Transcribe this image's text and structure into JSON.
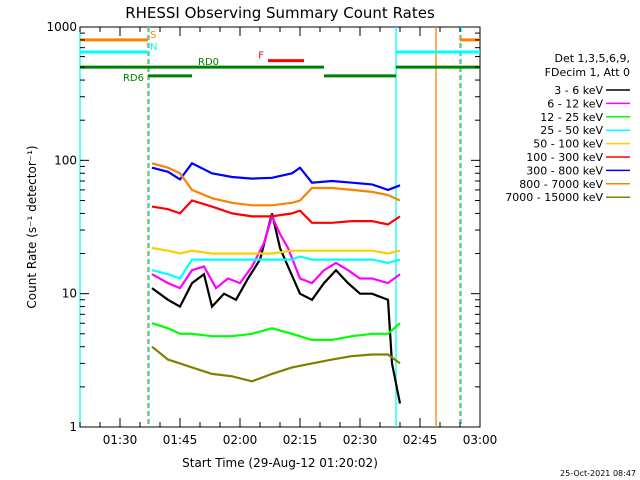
{
  "chart_data": {
    "type": "line",
    "title": "RHESSI Observing Summary Count Rates",
    "xlabel": "Start Time (29-Aug-12 01:20:02)",
    "ylabel": "Count Rate (s⁻¹ detector⁻¹)",
    "yscale": "log",
    "ylim": [
      1,
      1000
    ],
    "xlim_minutes": [
      0,
      100
    ],
    "x_ticks": [
      {
        "m": 10,
        "label": "01:30"
      },
      {
        "m": 25,
        "label": "01:45"
      },
      {
        "m": 40,
        "label": "02:00"
      },
      {
        "m": 55,
        "label": "02:15"
      },
      {
        "m": 70,
        "label": "02:30"
      },
      {
        "m": 85,
        "label": "02:45"
      },
      {
        "m": 100,
        "label": "03:00"
      }
    ],
    "y_ticks": [
      {
        "v": 1,
        "label": "1"
      },
      {
        "v": 10,
        "label": "10"
      },
      {
        "v": 100,
        "label": "100"
      },
      {
        "v": 1000,
        "label": "1000"
      }
    ],
    "legend_title": [
      "Det 1,3,5,6,9,",
      "FDecim 1, Att 0"
    ],
    "legend_position": "right",
    "series": [
      {
        "name": "3 - 6 keV",
        "color": "#000000",
        "values": [
          [
            18,
            11
          ],
          [
            22,
            9
          ],
          [
            25,
            8
          ],
          [
            28,
            12
          ],
          [
            31,
            14
          ],
          [
            33,
            8
          ],
          [
            36,
            10
          ],
          [
            39,
            9
          ],
          [
            42,
            13
          ],
          [
            45,
            18
          ],
          [
            48,
            40
          ],
          [
            50,
            22
          ],
          [
            52,
            16
          ],
          [
            55,
            10
          ],
          [
            58,
            9
          ],
          [
            61,
            12
          ],
          [
            64,
            15
          ],
          [
            67,
            12
          ],
          [
            70,
            10
          ],
          [
            73,
            10
          ],
          [
            77,
            9
          ],
          [
            78,
            3
          ],
          [
            80,
            1.5
          ]
        ]
      },
      {
        "name": "6 - 12 keV",
        "color": "#ff00ff",
        "values": [
          [
            18,
            14
          ],
          [
            22,
            12
          ],
          [
            25,
            11
          ],
          [
            28,
            15
          ],
          [
            31,
            16
          ],
          [
            34,
            11
          ],
          [
            37,
            13
          ],
          [
            40,
            12
          ],
          [
            43,
            16
          ],
          [
            46,
            24
          ],
          [
            48,
            38
          ],
          [
            50,
            28
          ],
          [
            52,
            22
          ],
          [
            55,
            13
          ],
          [
            58,
            12
          ],
          [
            61,
            15
          ],
          [
            64,
            17
          ],
          [
            67,
            15
          ],
          [
            70,
            13
          ],
          [
            73,
            13
          ],
          [
            77,
            12
          ],
          [
            80,
            14
          ]
        ]
      },
      {
        "name": "12 - 25 keV",
        "color": "#00ff00",
        "values": [
          [
            18,
            6
          ],
          [
            22,
            5.5
          ],
          [
            25,
            5
          ],
          [
            28,
            5
          ],
          [
            33,
            4.8
          ],
          [
            38,
            4.8
          ],
          [
            43,
            5
          ],
          [
            48,
            5.5
          ],
          [
            53,
            5
          ],
          [
            58,
            4.5
          ],
          [
            63,
            4.5
          ],
          [
            68,
            4.8
          ],
          [
            73,
            5
          ],
          [
            77,
            5
          ],
          [
            80,
            6
          ]
        ]
      },
      {
        "name": "25 - 50 keV",
        "color": "#00ffff",
        "values": [
          [
            18,
            15
          ],
          [
            22,
            14
          ],
          [
            25,
            13
          ],
          [
            28,
            18
          ],
          [
            33,
            18
          ],
          [
            38,
            18
          ],
          [
            43,
            18
          ],
          [
            48,
            18
          ],
          [
            53,
            18
          ],
          [
            55,
            19
          ],
          [
            58,
            18
          ],
          [
            63,
            18
          ],
          [
            68,
            18
          ],
          [
            73,
            18
          ],
          [
            77,
            17
          ],
          [
            80,
            18
          ]
        ]
      },
      {
        "name": "50 - 100 keV",
        "color": "#ffcc00",
        "values": [
          [
            18,
            22
          ],
          [
            22,
            21
          ],
          [
            25,
            20
          ],
          [
            28,
            21
          ],
          [
            33,
            20
          ],
          [
            38,
            20
          ],
          [
            43,
            20
          ],
          [
            48,
            20
          ],
          [
            53,
            21
          ],
          [
            58,
            21
          ],
          [
            63,
            21
          ],
          [
            68,
            21
          ],
          [
            73,
            21
          ],
          [
            77,
            20
          ],
          [
            80,
            21
          ]
        ]
      },
      {
        "name": "100 - 300 keV",
        "color": "#ff0000",
        "values": [
          [
            18,
            45
          ],
          [
            22,
            43
          ],
          [
            25,
            40
          ],
          [
            28,
            50
          ],
          [
            33,
            45
          ],
          [
            38,
            40
          ],
          [
            43,
            38
          ],
          [
            48,
            38
          ],
          [
            53,
            40
          ],
          [
            55,
            42
          ],
          [
            58,
            34
          ],
          [
            63,
            34
          ],
          [
            68,
            35
          ],
          [
            73,
            35
          ],
          [
            77,
            33
          ],
          [
            80,
            38
          ]
        ]
      },
      {
        "name": "300 - 800 keV",
        "color": "#0000ff",
        "values": [
          [
            18,
            88
          ],
          [
            22,
            82
          ],
          [
            25,
            72
          ],
          [
            28,
            95
          ],
          [
            33,
            80
          ],
          [
            38,
            75
          ],
          [
            43,
            73
          ],
          [
            48,
            74
          ],
          [
            53,
            80
          ],
          [
            55,
            88
          ],
          [
            58,
            68
          ],
          [
            63,
            70
          ],
          [
            68,
            68
          ],
          [
            73,
            66
          ],
          [
            77,
            60
          ],
          [
            80,
            65
          ]
        ]
      },
      {
        "name": "800 - 7000 keV",
        "color": "#ff8000",
        "values": [
          [
            18,
            95
          ],
          [
            22,
            88
          ],
          [
            25,
            80
          ],
          [
            28,
            60
          ],
          [
            33,
            52
          ],
          [
            38,
            48
          ],
          [
            43,
            46
          ],
          [
            48,
            46
          ],
          [
            53,
            48
          ],
          [
            55,
            50
          ],
          [
            58,
            62
          ],
          [
            63,
            62
          ],
          [
            68,
            60
          ],
          [
            73,
            58
          ],
          [
            77,
            55
          ],
          [
            80,
            50
          ]
        ]
      },
      {
        "name": "7000 - 15000 keV",
        "color": "#808000",
        "values": [
          [
            18,
            4
          ],
          [
            22,
            3.2
          ],
          [
            25,
            3
          ],
          [
            28,
            2.8
          ],
          [
            33,
            2.5
          ],
          [
            38,
            2.4
          ],
          [
            43,
            2.2
          ],
          [
            48,
            2.5
          ],
          [
            53,
            2.8
          ],
          [
            58,
            3
          ],
          [
            63,
            3.2
          ],
          [
            68,
            3.4
          ],
          [
            73,
            3.5
          ],
          [
            77,
            3.5
          ],
          [
            80,
            3
          ]
        ]
      }
    ],
    "state_bars": [
      {
        "label": "S",
        "color": "#ff8000",
        "start": 0,
        "end": 17,
        "y": 800
      },
      {
        "label": "",
        "color": "#ff8000",
        "start": 95,
        "end": 100,
        "y": 800
      },
      {
        "label": "N",
        "color": "#00ffff",
        "start": 0,
        "end": 17,
        "y": 650
      },
      {
        "label": "",
        "color": "#00ffff",
        "start": 79,
        "end": 100,
        "y": 650
      },
      {
        "label": "RD0",
        "color": "#008000",
        "start": 0,
        "end": 29,
        "y": 500
      },
      {
        "label": "",
        "color": "#008000",
        "start": 29,
        "end": 61,
        "y": 500
      },
      {
        "label": "",
        "color": "#008000",
        "start": 79,
        "end": 100,
        "y": 500
      },
      {
        "label": "RD6",
        "color": "#008000",
        "start": 17,
        "end": 28,
        "y": 430
      },
      {
        "label": "",
        "color": "#008000",
        "start": 61,
        "end": 79,
        "y": 430
      },
      {
        "label": "F",
        "color": "#ff0000",
        "start": 47,
        "end": 56,
        "y": 560
      }
    ],
    "vertical_markers": [
      {
        "m": 17,
        "color": "#ff8000",
        "style": "dashed"
      },
      {
        "m": 17.3,
        "color": "#00ffff",
        "style": "dashed"
      },
      {
        "m": 79,
        "color": "#00ffff",
        "style": "solid"
      },
      {
        "m": 89,
        "color": "#ff8000",
        "style": "solid"
      },
      {
        "m": 95,
        "color": "#ff8000",
        "style": "dashed"
      },
      {
        "m": 95.3,
        "color": "#00ffff",
        "style": "dashed"
      },
      {
        "m": 0,
        "color": "#00ffff",
        "style": "solid"
      }
    ]
  },
  "footer": {
    "timestamp": "25-Oct-2021 08:47"
  }
}
